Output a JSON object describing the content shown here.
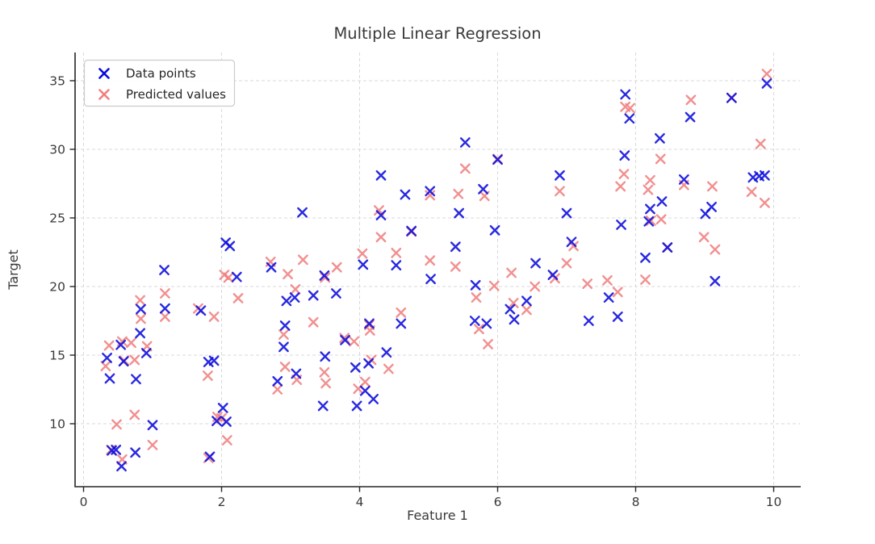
{
  "title": "Multiple Linear Regression",
  "xlabel": "Feature 1",
  "ylabel": "Target",
  "legend": [
    {
      "label": "Data points",
      "color": "#0b0bdd"
    },
    {
      "label": "Predicted values",
      "color": "#f08080"
    }
  ],
  "chart_data": {
    "type": "scatter",
    "title": "Multiple Linear Regression",
    "xlabel": "Feature 1",
    "ylabel": "Target",
    "marker": "x",
    "grid": true,
    "legend_position": "upper left",
    "background": "#ffffff",
    "xlim": [
      -0.12,
      10.38
    ],
    "ylim": [
      5.4,
      37.1
    ],
    "xticks": [
      0,
      2,
      4,
      6,
      8,
      10
    ],
    "yticks": [
      10,
      15,
      20,
      25,
      30,
      35
    ],
    "series": [
      {
        "name": "Predicted values",
        "color": "#f08080",
        "points": [
          [
            0.32,
            14.2
          ],
          [
            0.37,
            15.7
          ],
          [
            0.4,
            8.1
          ],
          [
            0.48,
            9.95
          ],
          [
            0.56,
            7.4
          ],
          [
            0.56,
            16.0
          ],
          [
            0.59,
            14.6
          ],
          [
            0.69,
            15.9
          ],
          [
            0.74,
            10.65
          ],
          [
            0.74,
            14.65
          ],
          [
            0.82,
            19.0
          ],
          [
            0.83,
            17.65
          ],
          [
            0.92,
            15.65
          ],
          [
            1.0,
            8.45
          ],
          [
            1.18,
            17.8
          ],
          [
            1.18,
            19.5
          ],
          [
            1.66,
            18.4
          ],
          [
            1.8,
            13.5
          ],
          [
            1.81,
            7.5
          ],
          [
            1.89,
            17.8
          ],
          [
            1.94,
            10.5
          ],
          [
            2.0,
            10.4
          ],
          [
            2.04,
            20.85
          ],
          [
            2.08,
            8.8
          ],
          [
            2.1,
            20.65
          ],
          [
            2.24,
            19.15
          ],
          [
            2.71,
            21.8
          ],
          [
            2.81,
            12.5
          ],
          [
            2.9,
            16.5
          ],
          [
            2.92,
            14.15
          ],
          [
            2.96,
            20.9
          ],
          [
            3.07,
            19.8
          ],
          [
            3.09,
            13.2
          ],
          [
            3.18,
            21.95
          ],
          [
            3.33,
            17.4
          ],
          [
            3.49,
            13.75
          ],
          [
            3.5,
            20.65
          ],
          [
            3.51,
            12.95
          ],
          [
            3.67,
            21.4
          ],
          [
            3.78,
            16.25
          ],
          [
            3.92,
            16.0
          ],
          [
            3.98,
            12.55
          ],
          [
            4.04,
            22.4
          ],
          [
            4.08,
            13.05
          ],
          [
            4.14,
            17.2
          ],
          [
            4.15,
            16.8
          ],
          [
            4.17,
            14.65
          ],
          [
            4.28,
            25.55
          ],
          [
            4.31,
            23.6
          ],
          [
            4.42,
            14.0
          ],
          [
            4.53,
            22.45
          ],
          [
            4.6,
            18.1
          ],
          [
            4.75,
            24.0
          ],
          [
            5.02,
            21.9
          ],
          [
            5.02,
            26.65
          ],
          [
            5.39,
            21.45
          ],
          [
            5.43,
            26.75
          ],
          [
            5.53,
            28.6
          ],
          [
            5.69,
            19.2
          ],
          [
            5.73,
            16.9
          ],
          [
            5.81,
            26.6
          ],
          [
            5.86,
            15.8
          ],
          [
            5.95,
            20.05
          ],
          [
            6.0,
            29.3
          ],
          [
            6.2,
            21.0
          ],
          [
            6.23,
            18.8
          ],
          [
            6.42,
            18.3
          ],
          [
            6.54,
            20.0
          ],
          [
            6.83,
            20.6
          ],
          [
            6.9,
            26.95
          ],
          [
            7.0,
            21.7
          ],
          [
            7.1,
            22.95
          ],
          [
            7.3,
            20.2
          ],
          [
            7.59,
            20.45
          ],
          [
            7.74,
            19.6
          ],
          [
            7.78,
            27.3
          ],
          [
            7.83,
            28.2
          ],
          [
            7.85,
            33.1
          ],
          [
            7.92,
            33.0
          ],
          [
            8.14,
            20.5
          ],
          [
            8.18,
            27.05
          ],
          [
            8.21,
            27.75
          ],
          [
            8.22,
            24.8
          ],
          [
            8.36,
            29.3
          ],
          [
            8.37,
            24.9
          ],
          [
            8.46,
            22.85
          ],
          [
            8.7,
            27.4
          ],
          [
            8.8,
            33.6
          ],
          [
            8.99,
            23.6
          ],
          [
            9.11,
            27.3
          ],
          [
            9.15,
            22.7
          ],
          [
            9.39,
            33.75
          ],
          [
            9.68,
            26.9
          ],
          [
            9.81,
            30.4
          ],
          [
            9.87,
            26.1
          ],
          [
            9.9,
            35.5
          ]
        ]
      },
      {
        "name": "Data points",
        "color": "#0b0bdd",
        "points": [
          [
            0.34,
            14.8
          ],
          [
            0.38,
            13.3
          ],
          [
            0.41,
            8.05
          ],
          [
            0.47,
            8.1
          ],
          [
            0.54,
            15.75
          ],
          [
            0.55,
            6.9
          ],
          [
            0.58,
            14.55
          ],
          [
            0.75,
            7.9
          ],
          [
            0.76,
            13.25
          ],
          [
            0.82,
            16.6
          ],
          [
            0.83,
            18.35
          ],
          [
            0.91,
            15.15
          ],
          [
            1.0,
            9.9
          ],
          [
            1.17,
            21.2
          ],
          [
            1.18,
            18.4
          ],
          [
            1.7,
            18.25
          ],
          [
            1.81,
            14.5
          ],
          [
            1.83,
            7.6
          ],
          [
            1.89,
            14.6
          ],
          [
            1.93,
            10.2
          ],
          [
            2.02,
            11.15
          ],
          [
            2.06,
            23.2
          ],
          [
            2.07,
            10.15
          ],
          [
            2.12,
            22.95
          ],
          [
            2.22,
            20.7
          ],
          [
            2.72,
            21.4
          ],
          [
            2.81,
            13.1
          ],
          [
            2.9,
            15.6
          ],
          [
            2.92,
            17.15
          ],
          [
            2.94,
            18.95
          ],
          [
            3.06,
            19.2
          ],
          [
            3.08,
            13.65
          ],
          [
            3.17,
            25.4
          ],
          [
            3.33,
            19.35
          ],
          [
            3.47,
            11.3
          ],
          [
            3.49,
            20.8
          ],
          [
            3.5,
            14.9
          ],
          [
            3.66,
            19.5
          ],
          [
            3.79,
            16.1
          ],
          [
            3.94,
            14.1
          ],
          [
            3.96,
            11.3
          ],
          [
            4.05,
            21.6
          ],
          [
            4.08,
            12.4
          ],
          [
            4.13,
            14.4
          ],
          [
            4.14,
            17.3
          ],
          [
            4.2,
            11.8
          ],
          [
            4.31,
            25.2
          ],
          [
            4.31,
            28.1
          ],
          [
            4.39,
            15.2
          ],
          [
            4.53,
            21.55
          ],
          [
            4.6,
            17.3
          ],
          [
            4.66,
            26.7
          ],
          [
            4.75,
            24.05
          ],
          [
            5.02,
            26.95
          ],
          [
            5.03,
            20.55
          ],
          [
            5.39,
            22.9
          ],
          [
            5.44,
            25.35
          ],
          [
            5.53,
            30.5
          ],
          [
            5.67,
            17.5
          ],
          [
            5.68,
            20.1
          ],
          [
            5.79,
            27.1
          ],
          [
            5.84,
            17.3
          ],
          [
            5.96,
            24.1
          ],
          [
            6.0,
            29.25
          ],
          [
            6.18,
            18.35
          ],
          [
            6.24,
            17.6
          ],
          [
            6.42,
            18.95
          ],
          [
            6.55,
            21.7
          ],
          [
            6.8,
            20.85
          ],
          [
            6.9,
            28.1
          ],
          [
            7.0,
            25.35
          ],
          [
            7.07,
            23.25
          ],
          [
            7.32,
            17.5
          ],
          [
            7.61,
            19.2
          ],
          [
            7.74,
            17.8
          ],
          [
            7.79,
            24.5
          ],
          [
            7.84,
            29.55
          ],
          [
            7.85,
            34.0
          ],
          [
            7.91,
            32.25
          ],
          [
            8.14,
            22.1
          ],
          [
            8.19,
            24.75
          ],
          [
            8.21,
            25.65
          ],
          [
            8.35,
            30.8
          ],
          [
            8.38,
            26.2
          ],
          [
            8.46,
            22.85
          ],
          [
            8.7,
            27.8
          ],
          [
            8.79,
            32.35
          ],
          [
            9.01,
            25.3
          ],
          [
            9.1,
            25.8
          ],
          [
            9.15,
            20.4
          ],
          [
            9.39,
            33.75
          ],
          [
            9.7,
            27.95
          ],
          [
            9.79,
            28.05
          ],
          [
            9.87,
            28.1
          ],
          [
            9.9,
            34.8
          ]
        ]
      }
    ]
  }
}
